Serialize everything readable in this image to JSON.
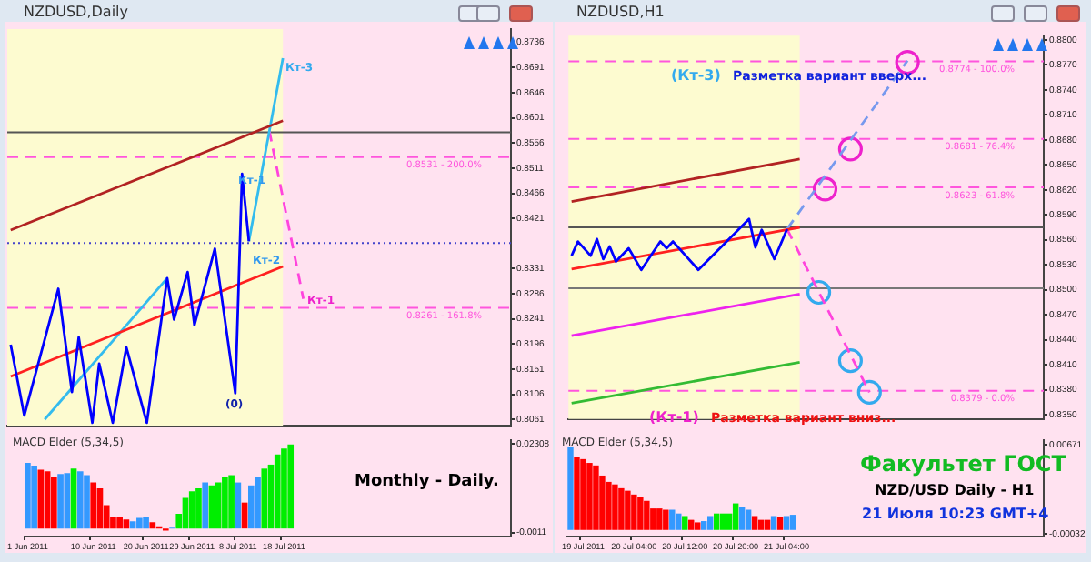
{
  "chart_data": [
    {
      "type": "line",
      "title": "NZDUSD,Daily",
      "tick_labels": "y",
      "ylim": [
        0.805,
        0.876
      ],
      "categories": [
        null,
        null,
        null,
        null,
        null,
        null,
        null,
        null,
        null,
        null,
        null,
        null,
        null,
        null,
        null,
        null,
        null,
        null,
        null,
        null,
        null,
        null,
        null,
        null,
        null,
        null,
        null,
        null,
        null,
        null,
        null,
        null,
        null,
        null,
        null,
        null,
        null,
        null,
        null,
        null,
        null,
        null,
        null,
        null,
        null,
        null,
        null,
        null,
        null,
        null,
        null,
        null,
        null,
        null,
        null,
        null,
        null,
        null,
        null,
        null,
        null,
        null,
        null,
        null,
        null,
        null,
        null,
        null,
        null,
        null,
        null,
        null,
        null,
        null
      ],
      "yticks": [
        0.8736,
        0.8691,
        0.8646,
        0.8601,
        0.8556,
        0.8511,
        0.8466,
        0.8421,
        0.8331,
        0.8286,
        0.8241,
        0.8196,
        0.8151,
        0.8106,
        0.8061
      ],
      "series": [
        {
          "color": "#0000ff",
          "values": [
            0.8195,
            null,
            0.8068,
            null,
            null,
            null,
            null,
            0.8295,
            null,
            0.811,
            0.8208,
            null,
            0.8055,
            0.8161,
            null,
            0.8055,
            null,
            0.819,
            null,
            null,
            0.8055,
            null,
            null,
            0.8314,
            0.824,
            null,
            0.8325,
            0.823,
            null,
            null,
            0.8367,
            null,
            null,
            0.8108,
            0.8501,
            0.838,
            null,
            null,
            null,
            null,
            null,
            null,
            null,
            null,
            null,
            null,
            null,
            null,
            null,
            null,
            null,
            null,
            null,
            null,
            null,
            null,
            null,
            null,
            null,
            null,
            null,
            null,
            null,
            null,
            null,
            null,
            null,
            null,
            null,
            null,
            null,
            null,
            null,
            null
          ]
        },
        {
          "color": "#b22222",
          "values": [
            0.84,
            null,
            null,
            null,
            null,
            null,
            null,
            null,
            null,
            null,
            null,
            null,
            null,
            null,
            null,
            null,
            null,
            null,
            null,
            null,
            null,
            null,
            null,
            null,
            null,
            null,
            null,
            null,
            null,
            null,
            null,
            null,
            null,
            null,
            null,
            null,
            null,
            null,
            null,
            null,
            0.8596,
            null,
            null,
            null,
            null,
            null,
            null,
            null,
            null,
            null,
            null,
            null,
            null,
            null,
            null,
            null,
            null,
            null,
            null,
            null,
            null,
            null,
            null,
            null,
            null,
            null,
            null,
            null,
            null,
            null,
            null,
            null,
            null,
            null
          ]
        },
        {
          "color": "#ff2020",
          "values": [
            0.8138,
            null,
            null,
            null,
            null,
            null,
            null,
            null,
            null,
            null,
            null,
            null,
            null,
            null,
            null,
            null,
            null,
            null,
            null,
            null,
            null,
            null,
            null,
            null,
            null,
            null,
            null,
            null,
            null,
            null,
            null,
            null,
            null,
            null,
            null,
            null,
            null,
            null,
            null,
            null,
            0.8335,
            null,
            null,
            null,
            null,
            null,
            null,
            null,
            null,
            null,
            null,
            null,
            null,
            null,
            null,
            null,
            null,
            null,
            null,
            null,
            null,
            null,
            null,
            null,
            null,
            null,
            null,
            null,
            null,
            null,
            null,
            null,
            null,
            null
          ]
        },
        {
          "color": "#33bbee",
          "values": [
            null,
            null,
            null,
            null,
            null,
            0.8061,
            null,
            null,
            null,
            null,
            null,
            null,
            null,
            null,
            null,
            null,
            null,
            null,
            null,
            null,
            null,
            null,
            null,
            0.8314,
            null,
            null,
            null,
            null,
            null,
            null,
            null,
            null,
            null,
            null,
            null,
            null,
            null,
            null,
            null,
            null,
            null,
            null,
            null,
            null,
            null,
            null,
            null,
            null,
            null,
            null,
            null,
            null,
            null,
            null,
            null,
            null,
            null,
            null,
            null,
            null,
            null,
            null,
            null,
            null,
            null,
            null,
            null,
            null,
            null,
            null,
            null,
            null,
            null,
            null
          ]
        },
        {
          "color": "#33bbee",
          "values": [
            null,
            null,
            null,
            null,
            null,
            null,
            null,
            null,
            null,
            null,
            null,
            null,
            null,
            null,
            null,
            null,
            null,
            null,
            null,
            null,
            null,
            null,
            null,
            null,
            null,
            null,
            null,
            null,
            null,
            null,
            null,
            null,
            null,
            null,
            null,
            0.838,
            null,
            null,
            null,
            null,
            0.8708,
            null,
            null,
            null,
            null,
            null,
            null,
            null,
            null,
            null,
            null,
            null,
            null,
            null,
            null,
            null,
            null,
            null,
            null,
            null,
            null,
            null,
            null,
            null,
            null,
            null,
            null,
            null,
            null,
            null,
            null,
            null,
            null,
            null
          ]
        },
        {
          "color": "#ff44dd",
          "line_style": "dashed",
          "values": [
            null,
            null,
            null,
            null,
            null,
            null,
            null,
            null,
            null,
            null,
            null,
            null,
            null,
            null,
            null,
            null,
            null,
            null,
            null,
            null,
            null,
            null,
            null,
            null,
            null,
            null,
            null,
            null,
            null,
            null,
            null,
            null,
            null,
            null,
            null,
            null,
            null,
            null,
            0.8578,
            null,
            null,
            null,
            null,
            0.8277,
            null,
            null,
            null,
            null,
            null,
            null,
            null,
            null,
            null,
            null,
            null,
            null,
            null,
            null,
            null,
            null,
            null,
            null,
            null,
            null,
            null,
            null,
            null,
            null,
            null,
            null,
            null,
            null,
            null,
            null
          ]
        }
      ],
      "ref_lines": [
        {
          "axis": "y",
          "value": 0.8531,
          "label": "0.8531 - 200.0%",
          "color": "#ff55dd",
          "line_style": "dashed"
        },
        {
          "axis": "y",
          "value": 0.8261,
          "label": "0.8261 - 161.8%",
          "color": "#ff55dd",
          "line_style": "dashed"
        },
        {
          "axis": "y",
          "value": 0.8575,
          "color": "#555555",
          "line_style": "solid"
        },
        {
          "axis": "y",
          "value": 0.8377,
          "color": "#4444cc",
          "line_style": "dotted"
        }
      ],
      "annotations": [
        "Кт-3",
        "Кт-1",
        "Кт-2",
        "Кт-1",
        "(0)"
      ]
    },
    {
      "type": "bar",
      "title": "MACD Elder (5,34,5)",
      "ylim": [
        -0.0022,
        0.0242
      ],
      "yticks": [
        0.02308,
        -0.0011
      ],
      "categories": [
        "1 Jun 2011",
        null,
        null,
        null,
        null,
        null,
        null,
        null,
        null,
        null,
        "10 Jun 2011",
        null,
        null,
        null,
        null,
        null,
        null,
        null,
        "20 Jun 2011",
        null,
        null,
        null,
        null,
        null,
        null,
        "29 Jun 2011",
        null,
        null,
        null,
        null,
        null,
        null,
        "8 Jul 2011",
        null,
        null,
        null,
        null,
        null,
        null,
        "18 Jul 2011",
        null,
        null,
        null,
        null,
        null,
        null,
        null,
        null,
        null,
        null,
        null,
        null,
        null,
        null,
        null,
        null,
        null,
        null,
        null,
        null,
        null,
        null,
        null,
        null,
        null,
        null,
        null,
        null,
        null,
        null,
        null,
        null,
        null,
        null
      ],
      "values": [
        0.018,
        0.0172,
        0.0161,
        0.0157,
        0.0141,
        0.0149,
        0.0152,
        0.0164,
        0.0157,
        0.0146,
        0.0126,
        0.011,
        0.0064,
        0.0033,
        0.0033,
        0.0025,
        0.002,
        0.0029,
        0.0033,
        0.0017,
        0.0006,
        -0.0006,
        0.0002,
        0.004,
        0.0084,
        0.0102,
        0.011,
        0.0126,
        0.0118,
        0.0126,
        0.0141,
        0.0146,
        0.0126,
        0.0071,
        0.0118,
        0.0141,
        0.0164,
        0.0175,
        0.0203,
        0.0219,
        0.023,
        null,
        null,
        null,
        null,
        null,
        null,
        null,
        null,
        null,
        null,
        null,
        null,
        null,
        null,
        null,
        null,
        null,
        null,
        null,
        null,
        null,
        null,
        null,
        null,
        null,
        null,
        null,
        null,
        null,
        null,
        null,
        null,
        null
      ],
      "colors": [
        "#3399ff",
        "#3399ff",
        "#ff0000",
        "#ff0000",
        "#ff0000",
        "#3399ff",
        "#3399ff",
        "#00ee00",
        "#3399ff",
        "#3399ff",
        "#ff0000",
        "#ff0000",
        "#ff0000",
        "#ff0000",
        "#ff0000",
        "#ff0000",
        "#3399ff",
        "#3399ff",
        "#3399ff",
        "#ff0000",
        "#ff0000",
        "#ff0000",
        "#3399ff",
        "#00ee00",
        "#00ee00",
        "#00ee00",
        "#00ee00",
        "#3399ff",
        "#00ee00",
        "#00ee00",
        "#00ee00",
        "#00ee00",
        "#3399ff",
        "#ff0000",
        "#3399ff",
        "#3399ff",
        "#00ee00",
        "#00ee00",
        "#00ee00",
        "#00ee00",
        "#00ee00",
        null,
        null,
        null,
        null,
        null,
        null,
        null,
        null,
        null,
        null,
        null,
        null,
        null,
        null,
        null,
        null,
        null,
        null,
        null,
        null,
        null,
        null,
        null,
        null,
        null,
        null,
        null,
        null,
        null,
        null,
        null,
        null,
        null
      ],
      "annotations": [
        "Monthly - Daily."
      ]
    },
    {
      "type": "line",
      "title": "NZDUSD,H1",
      "tick_labels": "y",
      "ylim": [
        0.8345,
        0.8805
      ],
      "categories": [
        null,
        null,
        null,
        null,
        null,
        null,
        null,
        null,
        null,
        null,
        null,
        null,
        null,
        null,
        null,
        null,
        null,
        null,
        null,
        null,
        null,
        null,
        null,
        null,
        null,
        null,
        null,
        null,
        null,
        null,
        null,
        null,
        null,
        null,
        null,
        null,
        null,
        null,
        null,
        null,
        null,
        null,
        null,
        null,
        null,
        null,
        null,
        null,
        null,
        null,
        null,
        null,
        null,
        null,
        null,
        null,
        null,
        null,
        null,
        null,
        null,
        null,
        null,
        null,
        null,
        null,
        null,
        null,
        null,
        null,
        null,
        null,
        null,
        null,
        null
      ],
      "yticks": [
        {
          "value": 0.88,
          "label": "0.8800"
        },
        {
          "value": 0.877,
          "label": "0.8770"
        },
        {
          "value": 0.874,
          "label": "0.8740"
        },
        {
          "value": 0.871,
          "label": "0.8710"
        },
        {
          "value": 0.868,
          "label": "0.8680"
        },
        {
          "value": 0.865,
          "label": "0.8650"
        },
        {
          "value": 0.862,
          "label": "0.8620"
        },
        {
          "value": 0.859,
          "label": "0.8590"
        },
        {
          "value": 0.856,
          "label": "0.8560"
        },
        {
          "value": 0.853,
          "label": "0.8530"
        },
        {
          "value": 0.85,
          "label": "0.8500"
        },
        {
          "value": 0.847,
          "label": "0.8470"
        },
        {
          "value": 0.844,
          "label": "0.8440"
        },
        {
          "value": 0.841,
          "label": "0.8410"
        },
        {
          "value": 0.838,
          "label": "0.8380"
        },
        {
          "value": 0.835,
          "label": "0.8350"
        }
      ],
      "series": [
        {
          "color": "#0000ff",
          "values": [
            0.8541,
            0.8558,
            null,
            0.8541,
            0.8561,
            0.8537,
            0.8552,
            0.8534,
            null,
            0.855,
            null,
            0.8524,
            null,
            null,
            0.8558,
            0.855,
            0.8558,
            null,
            null,
            null,
            0.8524,
            null,
            null,
            null,
            null,
            null,
            null,
            null,
            0.8585,
            0.8551,
            0.8572,
            null,
            0.8537,
            null,
            0.8573,
            null,
            null,
            null,
            null,
            null,
            null,
            null,
            null,
            null,
            null,
            null,
            null,
            null,
            null,
            null,
            null,
            null,
            null,
            null,
            null,
            null,
            null,
            null,
            null,
            null,
            null,
            null,
            null,
            null,
            null,
            null,
            null,
            null,
            null,
            null,
            null,
            null,
            null,
            null,
            null
          ]
        },
        {
          "color": "#b22222",
          "values": [
            0.8606,
            null,
            null,
            null,
            null,
            null,
            null,
            null,
            null,
            null,
            null,
            null,
            null,
            null,
            null,
            null,
            null,
            null,
            null,
            null,
            null,
            null,
            null,
            null,
            null,
            null,
            null,
            null,
            null,
            null,
            null,
            null,
            null,
            null,
            null,
            null,
            0.8657,
            null,
            null,
            null,
            null,
            null,
            null,
            null,
            null,
            null,
            null,
            null,
            null,
            null,
            null,
            null,
            null,
            null,
            null,
            null,
            null,
            null,
            null,
            null,
            null,
            null,
            null,
            null,
            null,
            null,
            null,
            null,
            null,
            null,
            null,
            null,
            null,
            null,
            null
          ]
        },
        {
          "color": "#ff2020",
          "values": [
            0.8525,
            null,
            null,
            null,
            null,
            null,
            null,
            null,
            null,
            null,
            null,
            null,
            null,
            null,
            null,
            null,
            null,
            null,
            null,
            null,
            null,
            null,
            null,
            null,
            null,
            null,
            null,
            null,
            null,
            null,
            null,
            null,
            null,
            null,
            null,
            null,
            0.8575,
            null,
            null,
            null,
            null,
            null,
            null,
            null,
            null,
            null,
            null,
            null,
            null,
            null,
            null,
            null,
            null,
            null,
            null,
            null,
            null,
            null,
            null,
            null,
            null,
            null,
            null,
            null,
            null,
            null,
            null,
            null,
            null,
            null,
            null,
            null,
            null,
            null,
            null
          ]
        },
        {
          "color": "#ee22ee",
          "values": [
            0.8445,
            null,
            null,
            null,
            null,
            null,
            null,
            null,
            null,
            null,
            null,
            null,
            null,
            null,
            null,
            null,
            null,
            null,
            null,
            null,
            null,
            null,
            null,
            null,
            null,
            null,
            null,
            null,
            null,
            null,
            null,
            null,
            null,
            null,
            null,
            null,
            0.8495,
            null,
            null,
            null,
            null,
            null,
            null,
            null,
            null,
            null,
            null,
            null,
            null,
            null,
            null,
            null,
            null,
            null,
            null,
            null,
            null,
            null,
            null,
            null,
            null,
            null,
            null,
            null,
            null,
            null,
            null,
            null,
            null,
            null,
            null,
            null,
            null,
            null,
            null
          ]
        },
        {
          "color": "#33bb33",
          "values": [
            0.8364,
            null,
            null,
            null,
            null,
            null,
            null,
            null,
            null,
            null,
            null,
            null,
            null,
            null,
            null,
            null,
            null,
            null,
            null,
            null,
            null,
            null,
            null,
            null,
            null,
            null,
            null,
            null,
            null,
            null,
            null,
            null,
            null,
            null,
            null,
            null,
            0.8413,
            null,
            null,
            null,
            null,
            null,
            null,
            null,
            null,
            null,
            null,
            null,
            null,
            null,
            null,
            null,
            null,
            null,
            null,
            null,
            null,
            null,
            null,
            null,
            null,
            null,
            null,
            null,
            null,
            null,
            null,
            null,
            null,
            null,
            null,
            null,
            null,
            null,
            null
          ]
        },
        {
          "color": "#7799ee",
          "line_style": "dashed",
          "values": [
            null,
            null,
            null,
            null,
            null,
            null,
            null,
            null,
            null,
            null,
            null,
            null,
            null,
            null,
            null,
            null,
            null,
            null,
            null,
            null,
            null,
            null,
            null,
            null,
            null,
            null,
            null,
            null,
            null,
            null,
            null,
            null,
            null,
            null,
            0.8573,
            null,
            null,
            null,
            null,
            null,
            null,
            null,
            null,
            null,
            null,
            null,
            null,
            null,
            null,
            null,
            null,
            null,
            null,
            0.8775,
            null,
            null,
            null,
            null,
            null,
            null,
            null,
            null,
            null,
            null,
            null,
            null,
            null,
            null,
            null,
            null,
            null,
            null,
            null,
            null,
            null
          ]
        },
        {
          "color": "#ff44dd",
          "line_style": "dashed",
          "values": [
            null,
            null,
            null,
            null,
            null,
            null,
            null,
            null,
            null,
            null,
            null,
            null,
            null,
            null,
            null,
            null,
            null,
            null,
            null,
            null,
            null,
            null,
            null,
            null,
            null,
            null,
            null,
            null,
            null,
            null,
            null,
            null,
            null,
            null,
            0.8573,
            null,
            null,
            null,
            null,
            null,
            null,
            null,
            null,
            null,
            null,
            null,
            null,
            0.8377,
            null,
            null,
            null,
            null,
            null,
            null,
            null,
            null,
            null,
            null,
            null,
            null,
            null,
            null,
            null,
            null,
            null,
            null,
            null,
            null,
            null,
            null,
            null,
            null,
            null,
            null,
            null
          ]
        },
        {
          "type": "scatter",
          "marker": "circle",
          "color": "#ee22cc",
          "values": [
            null,
            null,
            null,
            null,
            null,
            null,
            null,
            null,
            null,
            null,
            null,
            null,
            null,
            null,
            null,
            null,
            null,
            null,
            null,
            null,
            null,
            null,
            null,
            null,
            null,
            null,
            null,
            null,
            null,
            null,
            null,
            null,
            null,
            null,
            null,
            null,
            null,
            null,
            null,
            null,
            0.8621,
            null,
            null,
            null,
            0.8669,
            null,
            null,
            null,
            null,
            null,
            null,
            null,
            null,
            0.8773,
            null,
            null,
            null,
            null,
            null,
            null,
            null,
            null,
            null,
            null,
            null,
            null,
            null,
            null,
            null,
            null,
            null,
            null,
            null,
            null,
            null
          ]
        },
        {
          "type": "scatter",
          "marker": "circle",
          "color": "#33aaee",
          "values": [
            null,
            null,
            null,
            null,
            null,
            null,
            null,
            null,
            null,
            null,
            null,
            null,
            null,
            null,
            null,
            null,
            null,
            null,
            null,
            null,
            null,
            null,
            null,
            null,
            null,
            null,
            null,
            null,
            null,
            null,
            null,
            null,
            null,
            null,
            null,
            null,
            null,
            null,
            null,
            0.8497,
            null,
            null,
            null,
            null,
            0.8415,
            null,
            null,
            0.8377,
            null,
            null,
            null,
            null,
            null,
            null,
            null,
            null,
            null,
            null,
            null,
            null,
            null,
            null,
            null,
            null,
            null,
            null,
            null,
            null,
            null,
            null,
            null,
            null,
            null,
            null,
            null
          ]
        }
      ],
      "ref_lines": [
        {
          "axis": "y",
          "value": 0.8774,
          "label": "0.8774 - 100.0%",
          "color": "#ff55dd",
          "line_style": "dashed"
        },
        {
          "axis": "y",
          "value": 0.8681,
          "label": "0.8681 - 76.4%",
          "color": "#ff55dd",
          "line_style": "dashed"
        },
        {
          "axis": "y",
          "value": 0.8623,
          "label": "0.8623 - 61.8%",
          "color": "#ff55dd",
          "line_style": "dashed"
        },
        {
          "axis": "y",
          "value": 0.8379,
          "label": "0.8379 - 0.0%",
          "color": "#ff55dd",
          "line_style": "dashed"
        },
        {
          "axis": "y",
          "value": 0.8575,
          "color": "#555555",
          "line_style": "solid"
        },
        {
          "axis": "y",
          "value": 0.8502,
          "color": "#777777",
          "line_style": "solid"
        }
      ],
      "annotations": [
        "(Кт-3)",
        "Разметка вариант вверх...",
        "(Кт-1)",
        "Разметка вариант вниз..."
      ]
    },
    {
      "type": "bar",
      "title": "MACD Elder (5,34,5)",
      "ylim": [
        -0.00052,
        0.0071
      ],
      "yticks": [
        0.00671,
        -0.00032
      ],
      "categories": [
        null,
        null,
        "19 Jul 2011",
        null,
        null,
        null,
        null,
        null,
        null,
        null,
        "20 Jul 04:00",
        null,
        null,
        null,
        null,
        null,
        null,
        null,
        "20 Jul 12:00",
        null,
        null,
        null,
        null,
        null,
        null,
        null,
        "20 Jul 20:00",
        null,
        null,
        null,
        null,
        null,
        null,
        null,
        "21 Jul 04:00",
        null,
        null,
        null,
        null,
        null,
        null,
        null,
        null,
        null,
        null,
        null,
        null,
        null,
        null,
        null,
        null,
        null,
        null,
        null,
        null,
        null,
        null,
        null,
        null,
        null,
        null,
        null,
        null,
        null,
        null,
        null,
        null,
        null,
        null,
        null,
        null,
        null,
        null,
        null,
        null
      ],
      "values": [
        0.0066,
        0.0058,
        0.0056,
        0.0053,
        0.0051,
        0.0043,
        0.0038,
        0.0036,
        0.0033,
        0.0031,
        0.0028,
        0.0026,
        0.0023,
        0.0017,
        0.0017,
        0.0016,
        0.0016,
        0.0013,
        0.0011,
        0.0008,
        0.0006,
        0.0007,
        0.0011,
        0.0013,
        0.0013,
        0.0013,
        0.0021,
        0.0018,
        0.0016,
        0.0011,
        0.0008,
        0.0008,
        0.0011,
        0.001,
        0.0011,
        0.0012,
        null,
        null,
        null,
        null,
        null,
        null,
        null,
        null,
        null,
        null,
        null,
        null,
        null,
        null,
        null,
        null,
        null,
        null,
        null,
        null,
        null,
        null,
        null,
        null,
        null,
        null,
        null,
        null,
        null,
        null,
        null,
        null,
        null,
        null,
        null,
        null,
        null,
        null,
        null
      ],
      "colors": [
        "#3399ff",
        "#ff0000",
        "#ff0000",
        "#ff0000",
        "#ff0000",
        "#ff0000",
        "#ff0000",
        "#ff0000",
        "#ff0000",
        "#ff0000",
        "#ff0000",
        "#ff0000",
        "#ff0000",
        "#ff0000",
        "#ff0000",
        "#ff0000",
        "#3399ff",
        "#3399ff",
        "#00ee00",
        "#ff0000",
        "#ff0000",
        "#3399ff",
        "#3399ff",
        "#00ee00",
        "#00ee00",
        "#00ee00",
        "#00ee00",
        "#3399ff",
        "#3399ff",
        "#ff0000",
        "#ff0000",
        "#ff0000",
        "#3399ff",
        "#ff0000",
        "#3399ff",
        "#3399ff",
        null,
        null,
        null,
        null,
        null,
        null,
        null,
        null,
        null,
        null,
        null,
        null,
        null,
        null,
        null,
        null,
        null,
        null,
        null,
        null,
        null,
        null,
        null,
        null,
        null,
        null,
        null,
        null,
        null,
        null,
        null,
        null,
        null,
        null,
        null,
        null,
        null,
        null,
        null
      ],
      "annotations": [
        "Факультет ГОСТ",
        "NZD/USD Daily - H1",
        "21 Июля 10:23 GMT+4"
      ]
    }
  ]
}
